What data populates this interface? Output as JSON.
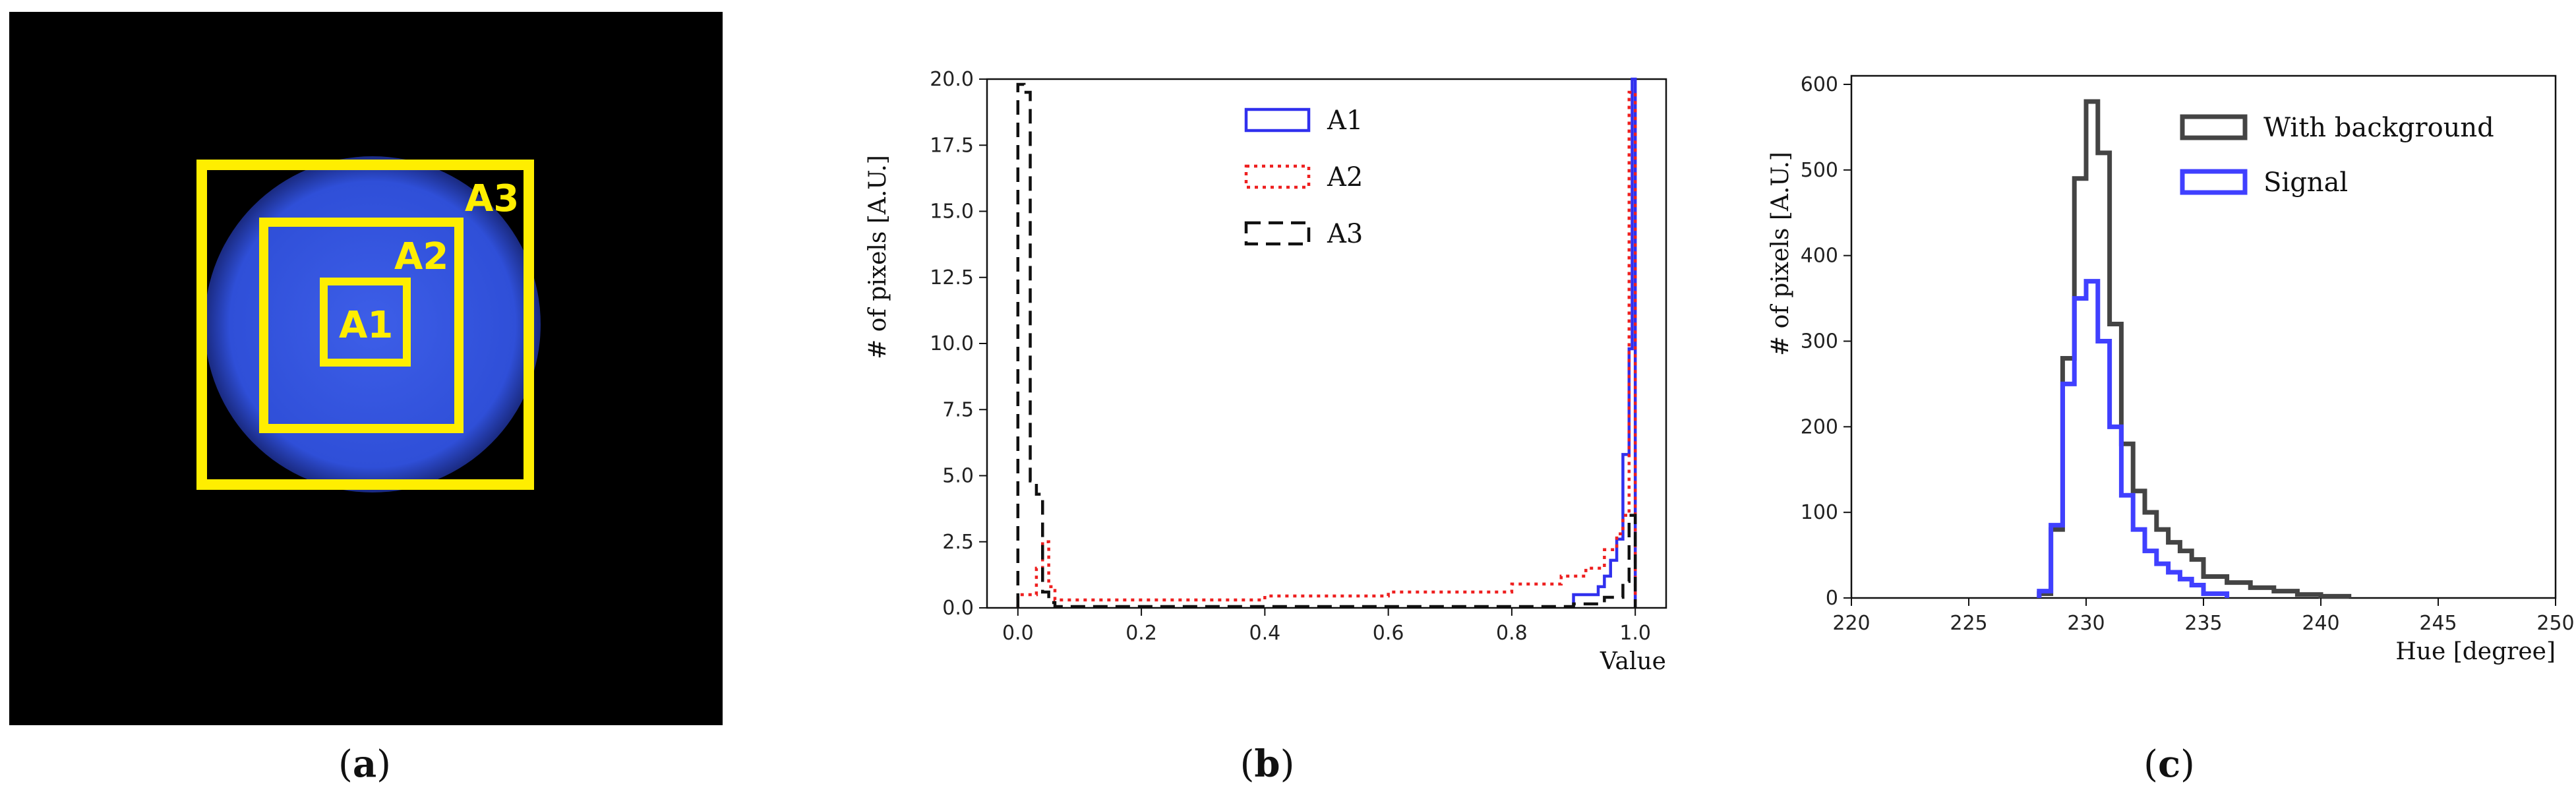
{
  "panel_a": {
    "boxes": [
      "A3",
      "A2",
      "A1"
    ],
    "colors": {
      "background": "#000000",
      "spot": "#2f4fd8",
      "box": "#ffee00"
    }
  },
  "captions": [
    {
      "open": "(",
      "letter": "a",
      "close": ")"
    },
    {
      "open": "(",
      "letter": "b",
      "close": ")"
    },
    {
      "open": "(",
      "letter": "c",
      "close": ")"
    }
  ],
  "chart_data": [
    {
      "type": "histogram",
      "panel": "b",
      "title": "",
      "xlabel": "Value",
      "ylabel": "# of pixels [A.U.]",
      "xlim": [
        -0.05,
        1.05
      ],
      "ylim": [
        0,
        20
      ],
      "xticks": [
        0.0,
        0.2,
        0.4,
        0.6,
        0.8,
        1.0
      ],
      "xtick_labels": [
        "0.0",
        "0.2",
        "0.4",
        "0.6",
        "0.8",
        "1.0"
      ],
      "yticks": [
        0.0,
        2.5,
        5.0,
        7.5,
        10.0,
        12.5,
        15.0,
        17.5,
        20.0
      ],
      "ytick_labels": [
        "0.0",
        "2.5",
        "5.0",
        "7.5",
        "10.0",
        "12.5",
        "15.0",
        "17.5",
        "20.0"
      ],
      "legend": "top-center",
      "series": [
        {
          "name": "A1",
          "color": "#3030ee",
          "style": "solid",
          "bins": [
            [
              0.9,
              0.94,
              0.5
            ],
            [
              0.94,
              0.95,
              0.8
            ],
            [
              0.95,
              0.96,
              1.2
            ],
            [
              0.96,
              0.97,
              1.8
            ],
            [
              0.97,
              0.98,
              2.6
            ],
            [
              0.98,
              0.99,
              5.8
            ],
            [
              0.99,
              0.995,
              9.8
            ],
            [
              0.995,
              1.0,
              20.0
            ]
          ]
        },
        {
          "name": "A2",
          "color": "#ee2020",
          "style": "dotted",
          "bins": [
            [
              0.0,
              0.03,
              0.5
            ],
            [
              0.03,
              0.04,
              1.5
            ],
            [
              0.04,
              0.05,
              2.5
            ],
            [
              0.05,
              0.06,
              0.8
            ],
            [
              0.06,
              0.2,
              0.3
            ],
            [
              0.2,
              0.4,
              0.3
            ],
            [
              0.4,
              0.6,
              0.45
            ],
            [
              0.6,
              0.8,
              0.6
            ],
            [
              0.8,
              0.88,
              0.9
            ],
            [
              0.88,
              0.92,
              1.2
            ],
            [
              0.92,
              0.95,
              1.5
            ],
            [
              0.95,
              0.97,
              2.2
            ],
            [
              0.97,
              0.98,
              2.8
            ],
            [
              0.98,
              0.99,
              3.5
            ],
            [
              0.99,
              1.0,
              19.5
            ]
          ]
        },
        {
          "name": "A3",
          "color": "#111111",
          "style": "dashed",
          "bins": [
            [
              0.0,
              0.01,
              19.8
            ],
            [
              0.01,
              0.02,
              19.5
            ],
            [
              0.02,
              0.03,
              4.8
            ],
            [
              0.03,
              0.04,
              4.3
            ],
            [
              0.04,
              0.05,
              0.6
            ],
            [
              0.05,
              0.06,
              0.2
            ],
            [
              0.06,
              0.9,
              0.05
            ],
            [
              0.9,
              0.95,
              0.15
            ],
            [
              0.95,
              0.98,
              0.4
            ],
            [
              0.98,
              0.99,
              1.0
            ],
            [
              0.99,
              1.0,
              3.5
            ]
          ]
        }
      ]
    },
    {
      "type": "histogram",
      "panel": "c",
      "title": "",
      "xlabel": "Hue [degree]",
      "ylabel": "# of pixels [A.U.]",
      "xlim": [
        220,
        250
      ],
      "ylim": [
        0,
        610
      ],
      "xticks": [
        220,
        225,
        230,
        235,
        240,
        245,
        250
      ],
      "xtick_labels": [
        "220",
        "225",
        "230",
        "235",
        "240",
        "245",
        "250"
      ],
      "yticks": [
        0,
        100,
        200,
        300,
        400,
        500,
        600
      ],
      "ytick_labels": [
        "0",
        "100",
        "200",
        "300",
        "400",
        "500",
        "600"
      ],
      "legend": "top-right",
      "series": [
        {
          "name": "With background",
          "color": "#444444",
          "style": "solid",
          "edges": [
            228,
            228.5,
            229,
            229.5,
            230,
            230.5,
            231,
            231.5,
            232,
            232.5,
            233,
            233.5,
            234,
            234.5,
            235,
            236,
            237,
            238,
            239,
            240,
            241.2
          ],
          "values": [
            5,
            80,
            280,
            490,
            580,
            520,
            320,
            180,
            125,
            100,
            80,
            65,
            55,
            45,
            25,
            18,
            12,
            8,
            4,
            2
          ]
        },
        {
          "name": "Signal",
          "color": "#4040ff",
          "style": "solid",
          "edges": [
            228,
            228.5,
            229,
            229.5,
            230,
            230.5,
            231,
            231.5,
            232,
            232.5,
            233,
            233.5,
            234,
            234.5,
            235,
            236
          ],
          "values": [
            8,
            85,
            250,
            350,
            370,
            300,
            200,
            120,
            80,
            55,
            40,
            30,
            22,
            15,
            5
          ]
        }
      ]
    }
  ]
}
